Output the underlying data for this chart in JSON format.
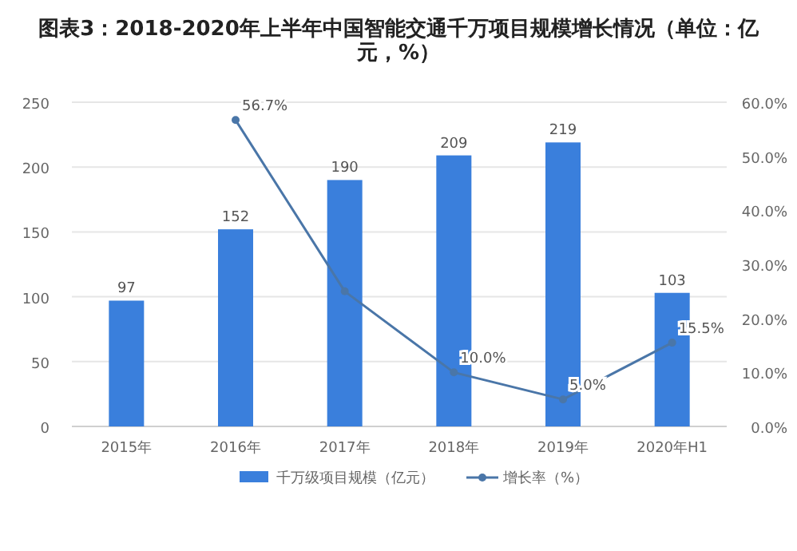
{
  "chart_data": {
    "type": "bar",
    "title": "图表3：2018-2020年上半年中国智能交通千万项目规模增长情况（单位：亿元，%）",
    "categories": [
      "2015年",
      "2016年",
      "2017年",
      "2018年",
      "2019年",
      "2020年H1"
    ],
    "series": [
      {
        "name": "千万级项目规模（亿元）",
        "color": "#3a7fdc",
        "values": [
          97,
          152,
          190,
          209,
          219,
          103
        ],
        "value_labels": [
          "97",
          "152",
          "190",
          "209",
          "219",
          "103"
        ]
      },
      {
        "name": "增长率（%）",
        "type": "line",
        "axis": "y2",
        "color": "#4a76a8",
        "marker": "circle",
        "values": [
          null,
          56.7,
          25.0,
          10.0,
          5.0,
          15.5
        ],
        "value_labels": [
          null,
          "56.7%",
          null,
          "10.0%",
          "5.0%",
          "15.5%"
        ]
      }
    ],
    "ylim": [
      0,
      250
    ],
    "yticks": [
      0,
      50,
      100,
      150,
      200,
      250
    ],
    "y2lim": [
      0,
      60
    ],
    "y2ticks": [
      {
        "value": 0,
        "label": "0.0%"
      },
      {
        "value": 10,
        "label": "10.0%"
      },
      {
        "value": 20,
        "label": "20.0%"
      },
      {
        "value": 30,
        "label": "30.0%"
      },
      {
        "value": 40,
        "label": "40.0%"
      },
      {
        "value": 50,
        "label": "50.0%"
      },
      {
        "value": 60,
        "label": "60.0%"
      }
    ],
    "grid": "y",
    "legend": "bottom"
  }
}
